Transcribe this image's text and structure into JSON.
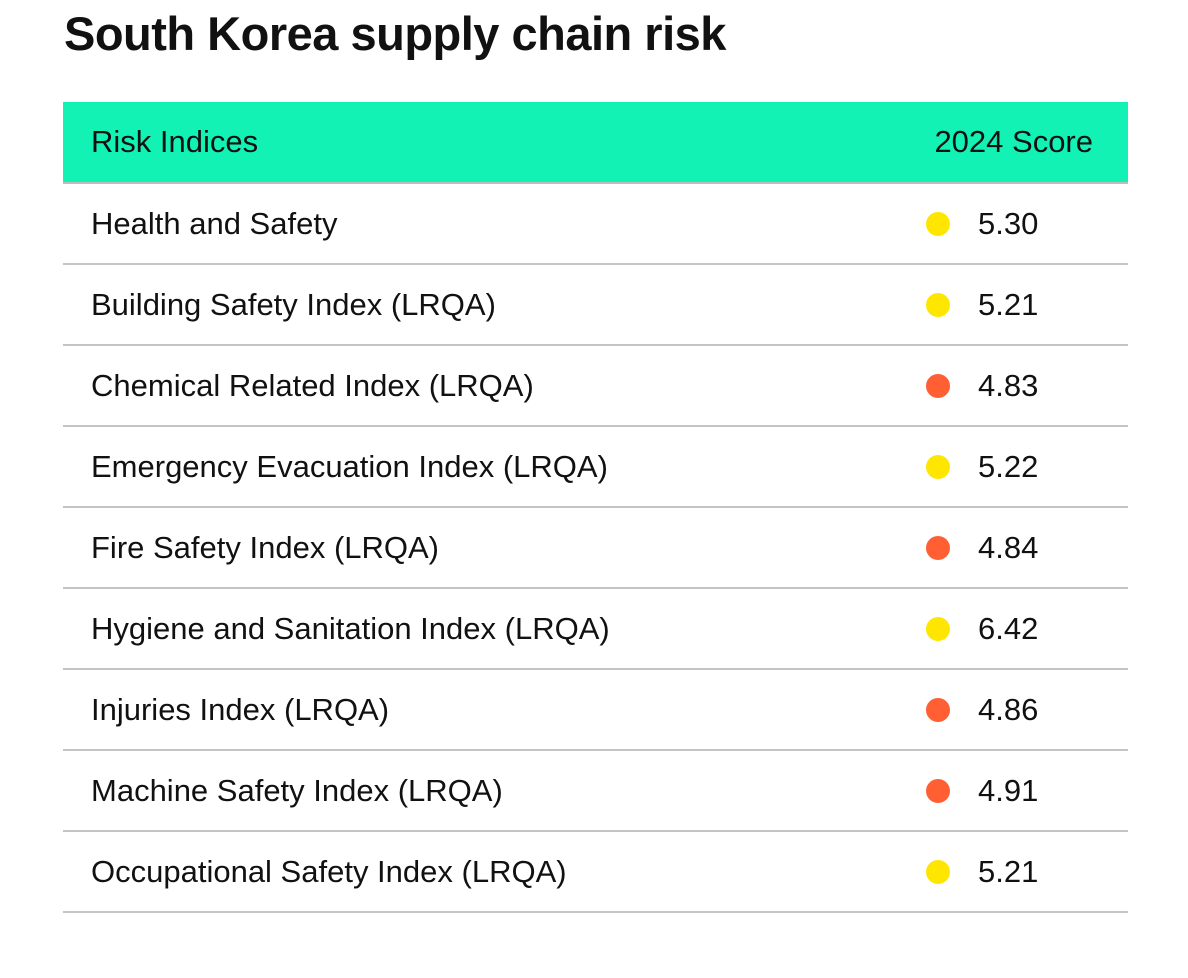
{
  "title": "South Korea supply chain risk",
  "table": {
    "headers": [
      "Risk Indices",
      "2024 Score"
    ],
    "colors": {
      "header_bg": "#12F2B4",
      "yellow": "#FFE600",
      "orange": "#FF5F33"
    },
    "rows": [
      {
        "name": "Health and Safety",
        "score": "5.30",
        "status": "yellow"
      },
      {
        "name": "Building Safety Index (LRQA)",
        "score": "5.21",
        "status": "yellow"
      },
      {
        "name": "Chemical Related Index (LRQA)",
        "score": "4.83",
        "status": "orange"
      },
      {
        "name": "Emergency Evacuation Index (LRQA)",
        "score": "5.22",
        "status": "yellow"
      },
      {
        "name": "Fire Safety Index (LRQA)",
        "score": "4.84",
        "status": "orange"
      },
      {
        "name": "Hygiene and Sanitation Index (LRQA)",
        "score": "6.42",
        "status": "yellow"
      },
      {
        "name": "Injuries Index (LRQA)",
        "score": "4.86",
        "status": "orange"
      },
      {
        "name": "Machine Safety Index (LRQA)",
        "score": "4.91",
        "status": "orange"
      },
      {
        "name": "Occupational Safety Index (LRQA)",
        "score": "5.21",
        "status": "yellow"
      }
    ]
  }
}
